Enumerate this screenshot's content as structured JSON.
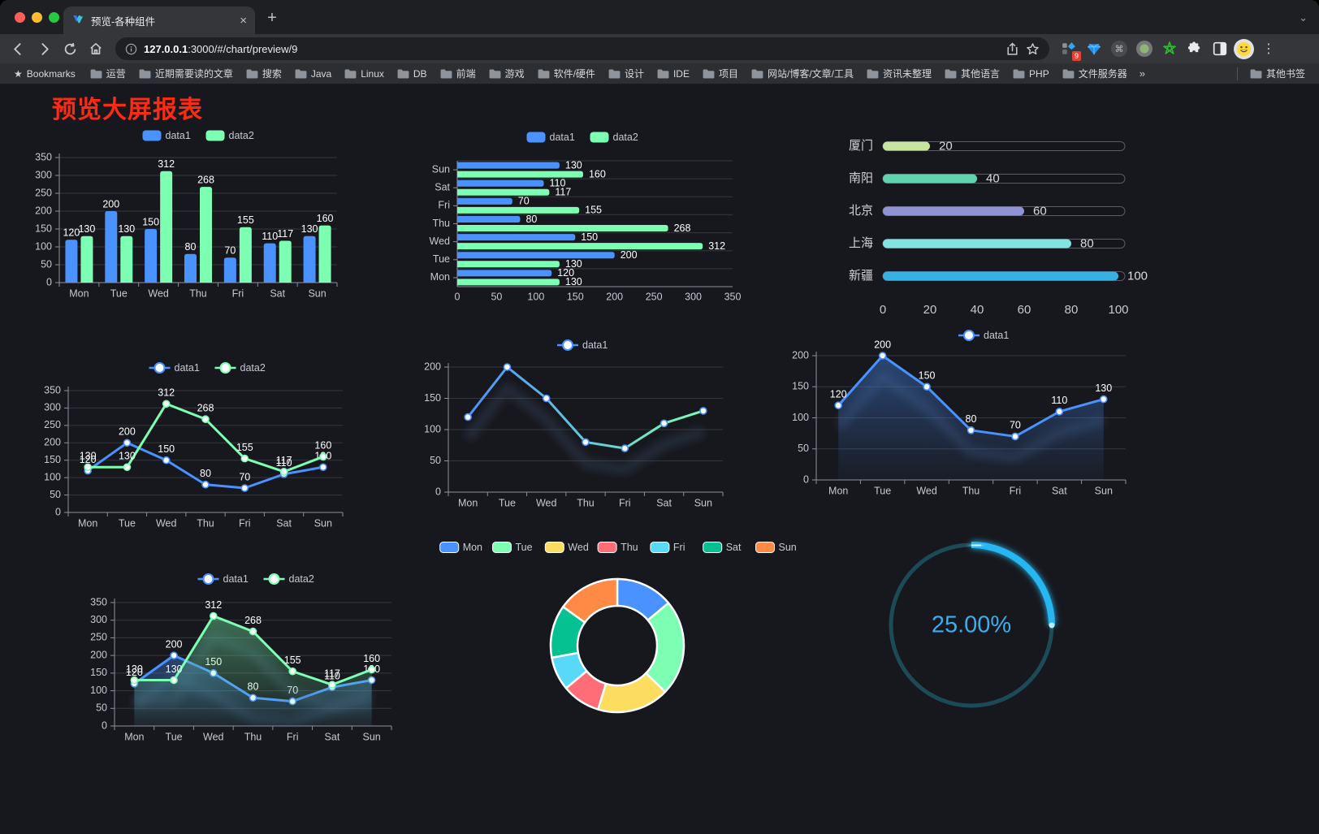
{
  "browser": {
    "tab_title": "预览-各种组件",
    "tab_close": "×",
    "new_tab": "+",
    "tab_search_chevron": "⌄",
    "url_host": "127.0.0.1",
    "url_rest": ":3000/#/chart/preview/9",
    "extension_badge": "9",
    "menu_dots": "⋮",
    "bookmarks_label": "Bookmarks",
    "bookmarks_star": "★",
    "bookmarks": [
      "运营",
      "近期需要读的文章",
      "搜索",
      "Java",
      "Linux",
      "DB",
      "前端",
      "游戏",
      "软件/硬件",
      "设计",
      "IDE",
      "项目",
      "网站/博客/文章/工具",
      "资讯未整理",
      "其他语言",
      "PHP",
      "文件服务器"
    ],
    "bookmarks_overflow": "»",
    "other_bookmarks": "其他书签"
  },
  "page": {
    "title": "预览大屏报表",
    "title_color": "#fe2b14",
    "background": "#17181d",
    "text_color": "#c7c8d2",
    "grid_color": "rgba(136,137,152,0.28)",
    "axis_color": "#8f90a0",
    "label_color": "#ffffff"
  },
  "chart_data": [
    {
      "id": "grouped-bar",
      "type": "bar",
      "orientation": "vertical",
      "categories": [
        "Mon",
        "Tue",
        "Wed",
        "Thu",
        "Fri",
        "Sat",
        "Sun"
      ],
      "series": [
        {
          "name": "data1",
          "color": "#4992ff",
          "values": [
            120,
            200,
            150,
            80,
            70,
            110,
            130
          ]
        },
        {
          "name": "data2",
          "color": "#7cffb2",
          "values": [
            130,
            130,
            312,
            268,
            155,
            117,
            160
          ]
        }
      ],
      "ylim": [
        0,
        350
      ],
      "ytick_step": 50,
      "value_labels": true,
      "legend_position": "top",
      "grid": true
    },
    {
      "id": "grouped-hbar",
      "type": "bar",
      "orientation": "horizontal",
      "categories": [
        "Mon",
        "Tue",
        "Wed",
        "Thu",
        "Fri",
        "Sat",
        "Sun"
      ],
      "display_order_top_to_bottom": [
        "Sun",
        "Sat",
        "Fri",
        "Thu",
        "Wed",
        "Tue",
        "Mon"
      ],
      "series": [
        {
          "name": "data1",
          "color": "#4992ff",
          "values": [
            120,
            200,
            150,
            80,
            70,
            110,
            130
          ]
        },
        {
          "name": "data2",
          "color": "#7cffb2",
          "values": [
            130,
            130,
            312,
            268,
            155,
            117,
            160
          ]
        }
      ],
      "xlim": [
        0,
        350
      ],
      "xtick_step": 50,
      "value_labels": true,
      "legend_position": "top",
      "grid": true
    },
    {
      "id": "city-progress",
      "type": "bar",
      "style": "progress-capsule",
      "items": [
        {
          "label": "厦门",
          "value": 20,
          "color": "#c7e59e"
        },
        {
          "label": "南阳",
          "value": 40,
          "color": "#5fd3ac"
        },
        {
          "label": "北京",
          "value": 60,
          "color": "#8f93d6"
        },
        {
          "label": "上海",
          "value": 80,
          "color": "#83e3e0"
        },
        {
          "label": "新疆",
          "value": 100,
          "color": "#36b1e4"
        }
      ],
      "xlim": [
        0,
        100
      ],
      "xticks": [
        0,
        20,
        40,
        60,
        80,
        100
      ],
      "value_labels": true
    },
    {
      "id": "line-two-series",
      "type": "line",
      "categories": [
        "Mon",
        "Tue",
        "Wed",
        "Thu",
        "Fri",
        "Sat",
        "Sun"
      ],
      "series": [
        {
          "name": "data1",
          "color": "#4992ff",
          "values": [
            120,
            200,
            150,
            80,
            70,
            110,
            130
          ]
        },
        {
          "name": "data2",
          "color": "#7cffb2",
          "values": [
            130,
            130,
            312,
            268,
            155,
            117,
            160
          ]
        }
      ],
      "ylim": [
        0,
        350
      ],
      "ytick_step": 50,
      "value_labels": true,
      "markers": true,
      "legend_position": "top",
      "grid": true
    },
    {
      "id": "line-gradient",
      "type": "line",
      "categories": [
        "Mon",
        "Tue",
        "Wed",
        "Thu",
        "Fri",
        "Sat",
        "Sun"
      ],
      "series": [
        {
          "name": "data1",
          "gradient": [
            "#4992ff",
            "#7cffb2"
          ],
          "color": "#4992ff",
          "values": [
            120,
            200,
            150,
            80,
            70,
            110,
            130
          ]
        }
      ],
      "ylim": [
        0,
        200
      ],
      "ytick_step": 50,
      "value_labels": false,
      "markers": true,
      "shadow": true,
      "legend_position": "top",
      "grid": true
    },
    {
      "id": "line-area-single",
      "type": "line",
      "categories": [
        "Mon",
        "Tue",
        "Wed",
        "Thu",
        "Fri",
        "Sat",
        "Sun"
      ],
      "series": [
        {
          "name": "data1",
          "color": "#4992ff",
          "values": [
            120,
            200,
            150,
            80,
            70,
            110,
            130
          ],
          "area": true
        }
      ],
      "ylim": [
        0,
        200
      ],
      "ytick_step": 50,
      "value_labels": true,
      "markers": true,
      "shadow": true,
      "legend_position": "top",
      "grid": true
    },
    {
      "id": "line-area-two",
      "type": "line",
      "categories": [
        "Mon",
        "Tue",
        "Wed",
        "Thu",
        "Fri",
        "Sat",
        "Sun"
      ],
      "series": [
        {
          "name": "data1",
          "color": "#4992ff",
          "values": [
            120,
            200,
            150,
            80,
            70,
            110,
            130
          ],
          "area": true
        },
        {
          "name": "data2",
          "color": "#7cffb2",
          "values": [
            130,
            130,
            312,
            268,
            155,
            117,
            160
          ],
          "area": true
        }
      ],
      "ylim": [
        0,
        350
      ],
      "ytick_step": 50,
      "value_labels": true,
      "markers": true,
      "shadow": true,
      "legend_position": "top",
      "grid": true
    },
    {
      "id": "donut",
      "type": "pie",
      "inner_radius_ratio": 0.6,
      "categories": [
        "Mon",
        "Tue",
        "Wed",
        "Thu",
        "Fri",
        "Sat",
        "Sun"
      ],
      "values": [
        120,
        200,
        150,
        80,
        70,
        110,
        130
      ],
      "colors": [
        "#4992ff",
        "#7cffb2",
        "#fddd60",
        "#ff6e76",
        "#58d9f9",
        "#05c091",
        "#ff8a45"
      ],
      "border_color": "#ffffff",
      "legend_position": "top"
    },
    {
      "id": "gauge",
      "type": "gauge",
      "value": 25,
      "max": 100,
      "label": "25.00%",
      "color": "#28b7f3",
      "track_color": "#1d4a57",
      "text_color": "#3aaeef"
    }
  ]
}
